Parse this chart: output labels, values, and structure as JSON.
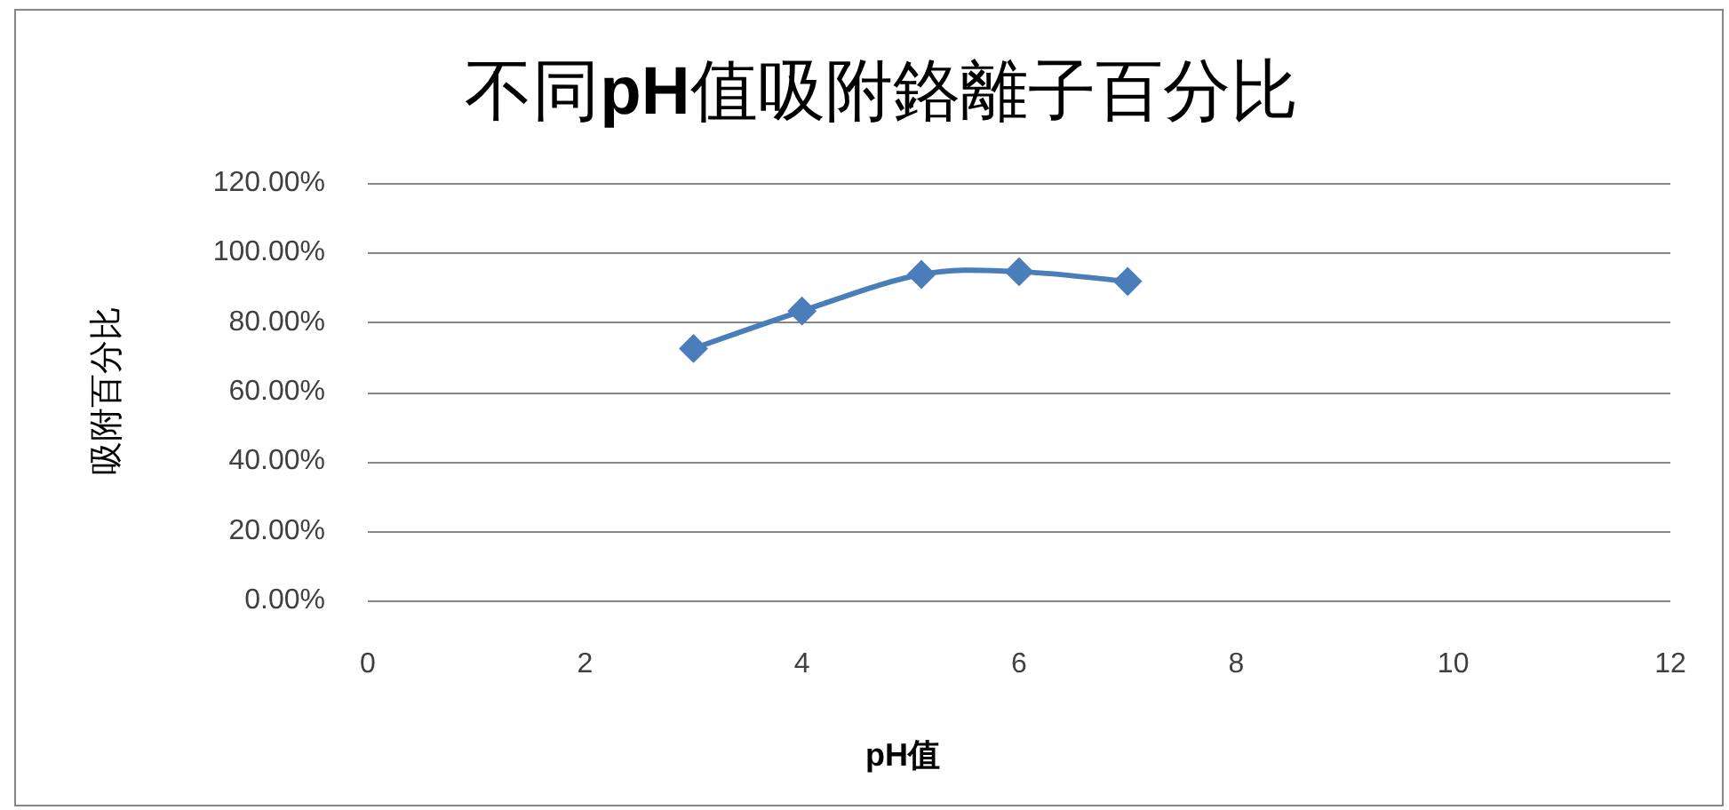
{
  "chart_data": {
    "type": "line",
    "title": "不同**pH**值吸附鉻離子百分比",
    "xlabel": "pH值",
    "ylabel": "吸附百分比",
    "x": [
      3,
      4,
      5.1,
      6,
      7
    ],
    "series": [
      {
        "color": "#4a7ebb",
        "values": [
          72.4,
          83.2,
          93.7,
          94.5,
          91.7
        ]
      }
    ],
    "xlim": [
      0,
      12
    ],
    "xticks": [
      0,
      2,
      4,
      6,
      8,
      10,
      12
    ],
    "ylim": [
      0,
      120
    ],
    "yticks": [
      {
        "value": 0,
        "label": "0.00%"
      },
      {
        "value": 20,
        "label": "20.00%"
      },
      {
        "value": 40,
        "label": "40.00%"
      },
      {
        "value": 60,
        "label": "60.00%"
      },
      {
        "value": 80,
        "label": "80.00%"
      },
      {
        "value": 100,
        "label": "100.00%"
      },
      {
        "value": 120,
        "label": "120.00%"
      }
    ],
    "grid": "y",
    "marker": "diamond"
  }
}
